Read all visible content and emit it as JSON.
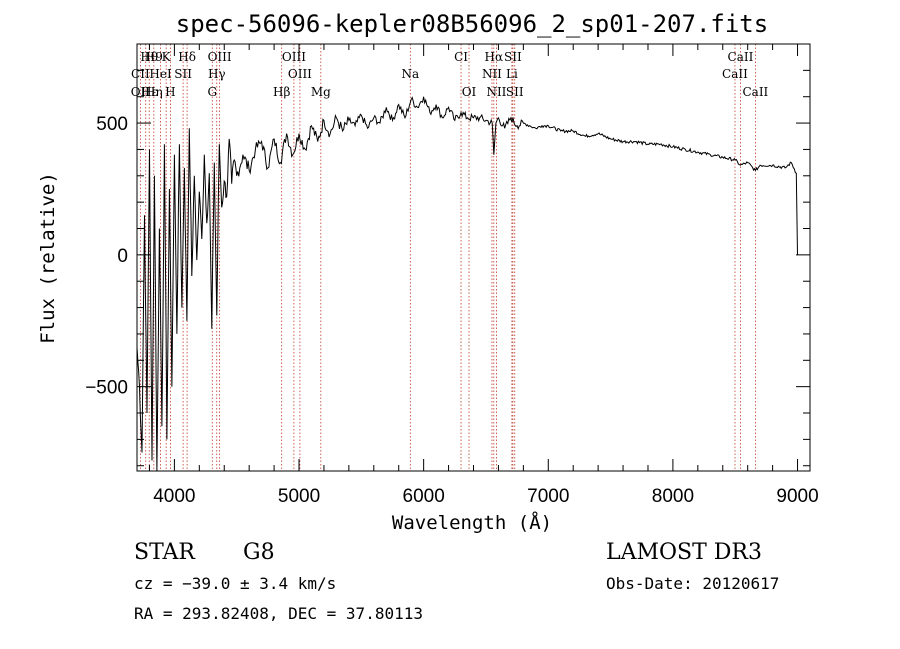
{
  "chart_data": {
    "type": "line",
    "title": "spec-56096-kepler08B56096_2_sp01-207.fits",
    "xlabel": "Wavelength (Å)",
    "ylabel": "Flux (relative)",
    "xlim": [
      3700,
      9100
    ],
    "ylim": [
      -820,
      800
    ],
    "xticks": [
      4000,
      5000,
      6000,
      7000,
      8000,
      9000
    ],
    "xtick_labels": [
      "4000",
      "5000",
      "6000",
      "7000",
      "8000",
      "9000"
    ],
    "yticks": [
      -500,
      0,
      500
    ],
    "ytick_labels": [
      "−500",
      "0",
      "500"
    ],
    "grid": false,
    "series": [
      {
        "name": "flux",
        "x": [
          3700,
          3720,
          3740,
          3760,
          3780,
          3800,
          3820,
          3840,
          3860,
          3880,
          3900,
          3920,
          3940,
          3960,
          3980,
          4000,
          4020,
          4040,
          4060,
          4080,
          4100,
          4120,
          4140,
          4160,
          4180,
          4200,
          4220,
          4240,
          4260,
          4280,
          4300,
          4320,
          4340,
          4360,
          4380,
          4400,
          4420,
          4440,
          4460,
          4480,
          4500,
          4550,
          4600,
          4650,
          4700,
          4750,
          4800,
          4850,
          4900,
          4950,
          5000,
          5050,
          5100,
          5150,
          5200,
          5250,
          5300,
          5350,
          5400,
          5450,
          5500,
          5550,
          5600,
          5650,
          5700,
          5750,
          5800,
          5850,
          5900,
          5950,
          6000,
          6050,
          6100,
          6150,
          6200,
          6250,
          6300,
          6350,
          6400,
          6450,
          6500,
          6550,
          6563,
          6580,
          6600,
          6650,
          6700,
          6750,
          6800,
          6850,
          6900,
          6950,
          7000,
          7100,
          7200,
          7300,
          7400,
          7500,
          7600,
          7700,
          7800,
          7900,
          8000,
          8100,
          8200,
          8300,
          8400,
          8500,
          8542,
          8600,
          8662,
          8700,
          8800,
          8900,
          8950,
          8990,
          9000
        ],
        "values": [
          -350,
          -500,
          -750,
          150,
          -600,
          400,
          -780,
          300,
          -820,
          100,
          -650,
          420,
          -700,
          250,
          -500,
          380,
          -300,
          420,
          -200,
          330,
          -250,
          480,
          -80,
          300,
          -20,
          240,
          60,
          380,
          120,
          310,
          -280,
          350,
          -230,
          420,
          180,
          280,
          220,
          440,
          270,
          360,
          300,
          380,
          320,
          400,
          430,
          330,
          440,
          350,
          460,
          380,
          460,
          400,
          490,
          430,
          510,
          460,
          520,
          470,
          510,
          490,
          530,
          480,
          520,
          500,
          560,
          510,
          570,
          520,
          590,
          560,
          600,
          540,
          570,
          520,
          560,
          510,
          540,
          520,
          520,
          520,
          510,
          500,
          380,
          500,
          520,
          480,
          520,
          490,
          500,
          490,
          480,
          490,
          490,
          470,
          470,
          450,
          460,
          440,
          430,
          430,
          420,
          420,
          410,
          400,
          390,
          380,
          370,
          360,
          340,
          350,
          320,
          340,
          340,
          330,
          350,
          310,
          0
        ],
        "color": "#000000"
      }
    ],
    "annotations": [
      {
        "label": "Hθ",
        "x": 3798,
        "row": 0
      },
      {
        "label": "H9",
        "x": 3835,
        "row": 0
      },
      {
        "label": "K",
        "x": 3934,
        "row": 0
      },
      {
        "label": "Hδ",
        "x": 4102,
        "row": 0
      },
      {
        "label": "OIII",
        "x": 4363,
        "row": 0
      },
      {
        "label": "OIII",
        "x": 4959,
        "row": 0
      },
      {
        "label": "CI",
        "x": 6300,
        "row": 0
      },
      {
        "label": "Hα",
        "x": 6563,
        "row": 0
      },
      {
        "label": "SII",
        "x": 6716,
        "row": 0
      },
      {
        "label": "CaII",
        "x": 8542,
        "row": 0
      },
      {
        "label": "CII",
        "x": 3727,
        "row": 1
      },
      {
        "label": "HeI",
        "x": 3889,
        "row": 1
      },
      {
        "label": "SII",
        "x": 4070,
        "row": 1
      },
      {
        "label": "Hγ",
        "x": 4340,
        "row": 1
      },
      {
        "label": "OIII",
        "x": 5007,
        "row": 1
      },
      {
        "label": "Na",
        "x": 5893,
        "row": 1
      },
      {
        "label": "NII",
        "x": 6548,
        "row": 1
      },
      {
        "label": "Li",
        "x": 6708,
        "row": 1
      },
      {
        "label": "CaII",
        "x": 8498,
        "row": 1
      },
      {
        "label": "OII",
        "x": 3727,
        "row": 2
      },
      {
        "label": "Hε",
        "x": 3800,
        "row": 2
      },
      {
        "label": "Hη",
        "x": 3835,
        "row": 2
      },
      {
        "label": "H",
        "x": 3968,
        "row": 2
      },
      {
        "label": "G",
        "x": 4304,
        "row": 2
      },
      {
        "label": "Hβ",
        "x": 4861,
        "row": 2
      },
      {
        "label": "Mg",
        "x": 5175,
        "row": 2
      },
      {
        "label": "OI",
        "x": 6364,
        "row": 2
      },
      {
        "label": "NII",
        "x": 6584,
        "row": 2
      },
      {
        "label": "SII",
        "x": 6731,
        "row": 2
      },
      {
        "label": "CaII",
        "x": 8662,
        "row": 2
      }
    ],
    "line_positions": [
      3727,
      3770,
      3798,
      3835,
      3889,
      3934,
      3968,
      4070,
      4102,
      4304,
      4340,
      4363,
      4861,
      4959,
      5007,
      5175,
      5893,
      6300,
      6364,
      6548,
      6563,
      6584,
      6708,
      6716,
      6731,
      8498,
      8542,
      8662
    ]
  },
  "info": {
    "object_class": "STAR",
    "subclass": "G8",
    "survey": "LAMOST DR3",
    "cz": "cz = −39.0 ± 3.4 km/s",
    "obs_date": "Obs-Date: 20120617",
    "coords": "RA = 293.82408, DEC =  37.80113"
  }
}
